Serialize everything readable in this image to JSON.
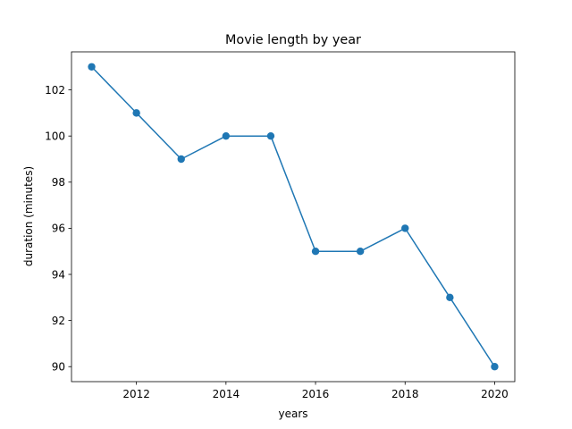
{
  "chart_data": {
    "type": "line",
    "title": "Movie length by year",
    "xlabel": "years",
    "ylabel": "duration (minutes)",
    "x": [
      2011,
      2012,
      2013,
      2014,
      2015,
      2016,
      2017,
      2018,
      2019,
      2020
    ],
    "series": [
      {
        "values": [
          103,
          101,
          99,
          100,
          100,
          95,
          95,
          96,
          93,
          90
        ]
      }
    ],
    "xlim": [
      2010.55,
      2020.45
    ],
    "ylim": [
      89.35,
      103.65
    ],
    "xticks": [
      2012,
      2014,
      2016,
      2018,
      2020
    ],
    "yticks": [
      90,
      92,
      94,
      96,
      98,
      100,
      102
    ],
    "grid": false,
    "line_color": "#1f77b4",
    "marker": "circle"
  }
}
